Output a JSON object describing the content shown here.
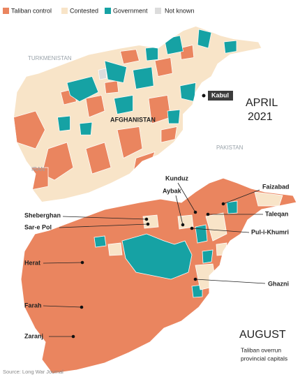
{
  "legend": [
    {
      "label": "Taliban control",
      "color": "#ea855f"
    },
    {
      "label": "Contested",
      "color": "#f8e4c8"
    },
    {
      "label": "Government",
      "color": "#16a2a4"
    },
    {
      "label": "Not known",
      "color": "#dcdcdc"
    }
  ],
  "april_map": {
    "month": "APRIL",
    "year": "2021",
    "neighbors": [
      "TURKMENISTAN",
      "IRAN",
      "PAKISTAN"
    ],
    "country": "AFGHANISTAN",
    "capital": "Kabul"
  },
  "august_map": {
    "month": "AUGUST",
    "caption": [
      "Taliban overrun",
      "provincial capitals"
    ],
    "cities": [
      "Kunduz",
      "Aybak",
      "Faizabad",
      "Taleqan",
      "Sheberghan",
      "Sar-e Pol",
      "Pul-i-Khumri",
      "Herat",
      "Ghazni",
      "Farah",
      "Zaranj"
    ]
  },
  "source": "Source: Long War Journal"
}
